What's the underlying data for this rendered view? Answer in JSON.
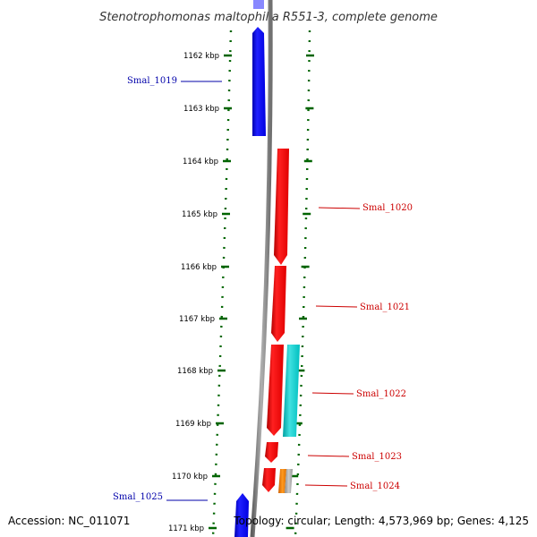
{
  "title": "Stenotrophomonas maltophilia R551-3, complete genome",
  "footer": {
    "accession": "Accession: NC_011071",
    "topology": "Topology: circular; Length: 4,573,969 bp; Genes: 4,125"
  },
  "colors": {
    "forward_strand": "#ff0000",
    "reverse_strand": "#0000ff",
    "backbone": "#808080",
    "dotted_ring": "#006400",
    "label_forward": "#cc0000",
    "label_reverse": "#0000aa"
  },
  "ticks": [
    {
      "label": "1162 kbp"
    },
    {
      "label": "1163 kbp"
    },
    {
      "label": "1164 kbp"
    },
    {
      "label": "1165 kbp"
    },
    {
      "label": "1166 kbp"
    },
    {
      "label": "1167 kbp"
    },
    {
      "label": "1168 kbp"
    },
    {
      "label": "1169 kbp"
    },
    {
      "label": "1170 kbp"
    },
    {
      "label": "1171 kbp"
    }
  ],
  "gene_labels": [
    {
      "name": "Smal_1019",
      "side": "left",
      "color": "#0000aa"
    },
    {
      "name": "Smal_1020",
      "side": "right",
      "color": "#cc0000"
    },
    {
      "name": "Smal_1021",
      "side": "right",
      "color": "#cc0000"
    },
    {
      "name": "Smal_1022",
      "side": "right",
      "color": "#cc0000"
    },
    {
      "name": "Smal_1023",
      "side": "right",
      "color": "#cc0000"
    },
    {
      "name": "Smal_1024",
      "side": "right",
      "color": "#cc0000"
    },
    {
      "name": "Smal_1025",
      "side": "left",
      "color": "#0000aa"
    }
  ]
}
